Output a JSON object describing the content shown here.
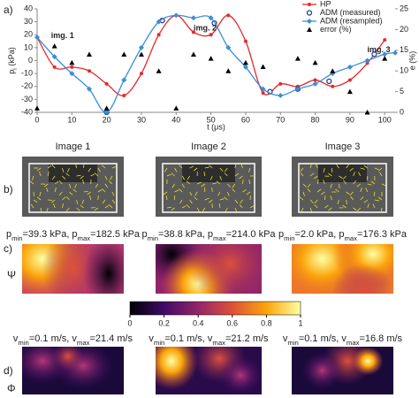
{
  "chart_data": {
    "type": "line",
    "panel_label": "a)",
    "x_label": "t (μs)",
    "y_label": [
      "p",
      "l",
      " (kPa)"
    ],
    "y2_label": "e (%)",
    "xlim": [
      0,
      103
    ],
    "xticks": [
      0,
      10,
      20,
      30,
      40,
      50,
      60,
      70,
      80,
      90,
      100
    ],
    "ylim": [
      -40,
      40
    ],
    "yticks": [
      -40,
      -30,
      -20,
      -10,
      0,
      10,
      20,
      30,
      40
    ],
    "y2lim": [
      0,
      25
    ],
    "y2ticks": [
      0,
      5,
      10,
      15,
      20,
      25
    ],
    "legend": "top-right",
    "series": [
      {
        "name": "HP",
        "color": "#e8282b",
        "marker": "circle",
        "line": true,
        "x": [
          0,
          5,
          10,
          15,
          20,
          25,
          30,
          35,
          40,
          45,
          50,
          55,
          60,
          65,
          70,
          75,
          80,
          85,
          90,
          95,
          100
        ],
        "values": [
          18,
          -5,
          -5,
          -8,
          -18,
          -27,
          -10,
          20,
          35,
          22,
          20,
          35,
          15,
          -25,
          -18,
          -20,
          -15,
          -20,
          -15,
          -2,
          16
        ]
      },
      {
        "name": "ADM (measured)",
        "color": "#1f3f8a",
        "marker": "open-circle",
        "line": false,
        "x": [
          20,
          36,
          51,
          67,
          75,
          84,
          97
        ],
        "values": [
          -40,
          31,
          29,
          -24,
          -22,
          -16,
          5
        ]
      },
      {
        "name": "ADM (resampled)",
        "color": "#3a8fd6",
        "marker": "diamond",
        "line": true,
        "x": [
          0,
          5,
          10,
          15,
          20,
          25,
          30,
          35,
          40,
          45,
          50,
          55,
          60,
          65,
          70,
          75,
          80,
          85,
          90,
          95,
          100,
          103
        ],
        "values": [
          18,
          3,
          -10,
          -22,
          -40,
          -15,
          10,
          30,
          35,
          33,
          33,
          10,
          -5,
          -22,
          -27,
          -22,
          -18,
          -10,
          -5,
          0,
          5,
          6
        ]
      },
      {
        "name": "error (%)",
        "color": "#000000",
        "marker": "triangle",
        "line": false,
        "axis": "y2",
        "x": [
          0,
          5,
          10,
          15,
          20,
          25,
          30,
          35,
          40,
          45,
          50,
          55,
          60,
          65,
          75,
          80,
          85,
          90,
          95,
          100
        ],
        "values": [
          1,
          16,
          12,
          14,
          1,
          14,
          14,
          10,
          1,
          14,
          13,
          10,
          12,
          11,
          13,
          12,
          10,
          5,
          0,
          13
        ]
      }
    ],
    "annotations": [
      {
        "text": "img. 1",
        "x": 4,
        "y": 19
      },
      {
        "text": "img. 2",
        "x": 45,
        "y": 25
      },
      {
        "text": "img. 3",
        "x": 95,
        "y": 8
      }
    ]
  },
  "panels": {
    "row_labels": [
      "b)",
      "c)",
      "d)"
    ],
    "psi": "Ψ",
    "phi": "Φ",
    "images": [
      {
        "title": "Image 1",
        "p_text": [
          "p",
          "min",
          "=39.3 kPa, p",
          "max",
          "=182.5 kPa"
        ],
        "v_text": [
          "v",
          "min",
          "=0.1 m/s, v",
          "max",
          "=21.4 m/s"
        ]
      },
      {
        "title": "Image 2",
        "p_text": [
          "p",
          "min",
          "=38.8 kPa, p",
          "max",
          "=214.0 kPa"
        ],
        "v_text": [
          "v",
          "min",
          "=0.1 m/s, v",
          "max",
          "=21.2 m/s"
        ]
      },
      {
        "title": "Image 3",
        "p_text": [
          "p",
          "min",
          "=2.0 kPa, p",
          "max",
          "=176.3 kPa"
        ],
        "v_text": [
          "v",
          "min",
          "=0.1 m/s, v",
          "max",
          "=16.8 m/s"
        ]
      }
    ]
  },
  "colorbar": {
    "ticks": [
      0,
      0.2,
      0.4,
      0.6,
      0.8,
      1
    ]
  }
}
